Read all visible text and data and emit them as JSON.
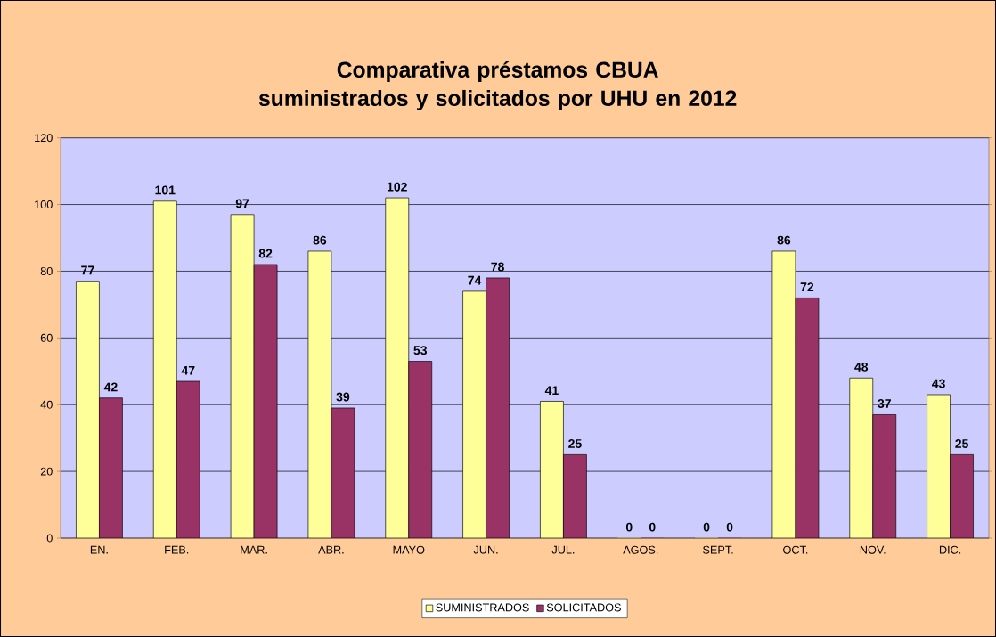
{
  "chart_data": {
    "type": "bar",
    "title": "Comparativa préstamos CBUA suministrados y solicitados por UHU en 2012",
    "categories": [
      "EN.",
      "FEB.",
      "MAR.",
      "ABR.",
      "MAYO",
      "JUN.",
      "JUL.",
      "AGOS.",
      "SEPT.",
      "OCT.",
      "NOV.",
      "DIC."
    ],
    "series": [
      {
        "name": "SUMINISTRADOS",
        "color": "#ffff99",
        "values": [
          77,
          101,
          97,
          86,
          102,
          74,
          41,
          0,
          0,
          86,
          48,
          43
        ]
      },
      {
        "name": "SOLICITADOS",
        "color": "#993366",
        "values": [
          42,
          47,
          82,
          39,
          53,
          78,
          25,
          0,
          0,
          72,
          37,
          25
        ]
      }
    ],
    "ylim": [
      0,
      120
    ],
    "yticks": [
      0,
      20,
      40,
      60,
      80,
      100,
      120
    ],
    "grid": "y",
    "legend": "bottom",
    "data_labels": true
  }
}
